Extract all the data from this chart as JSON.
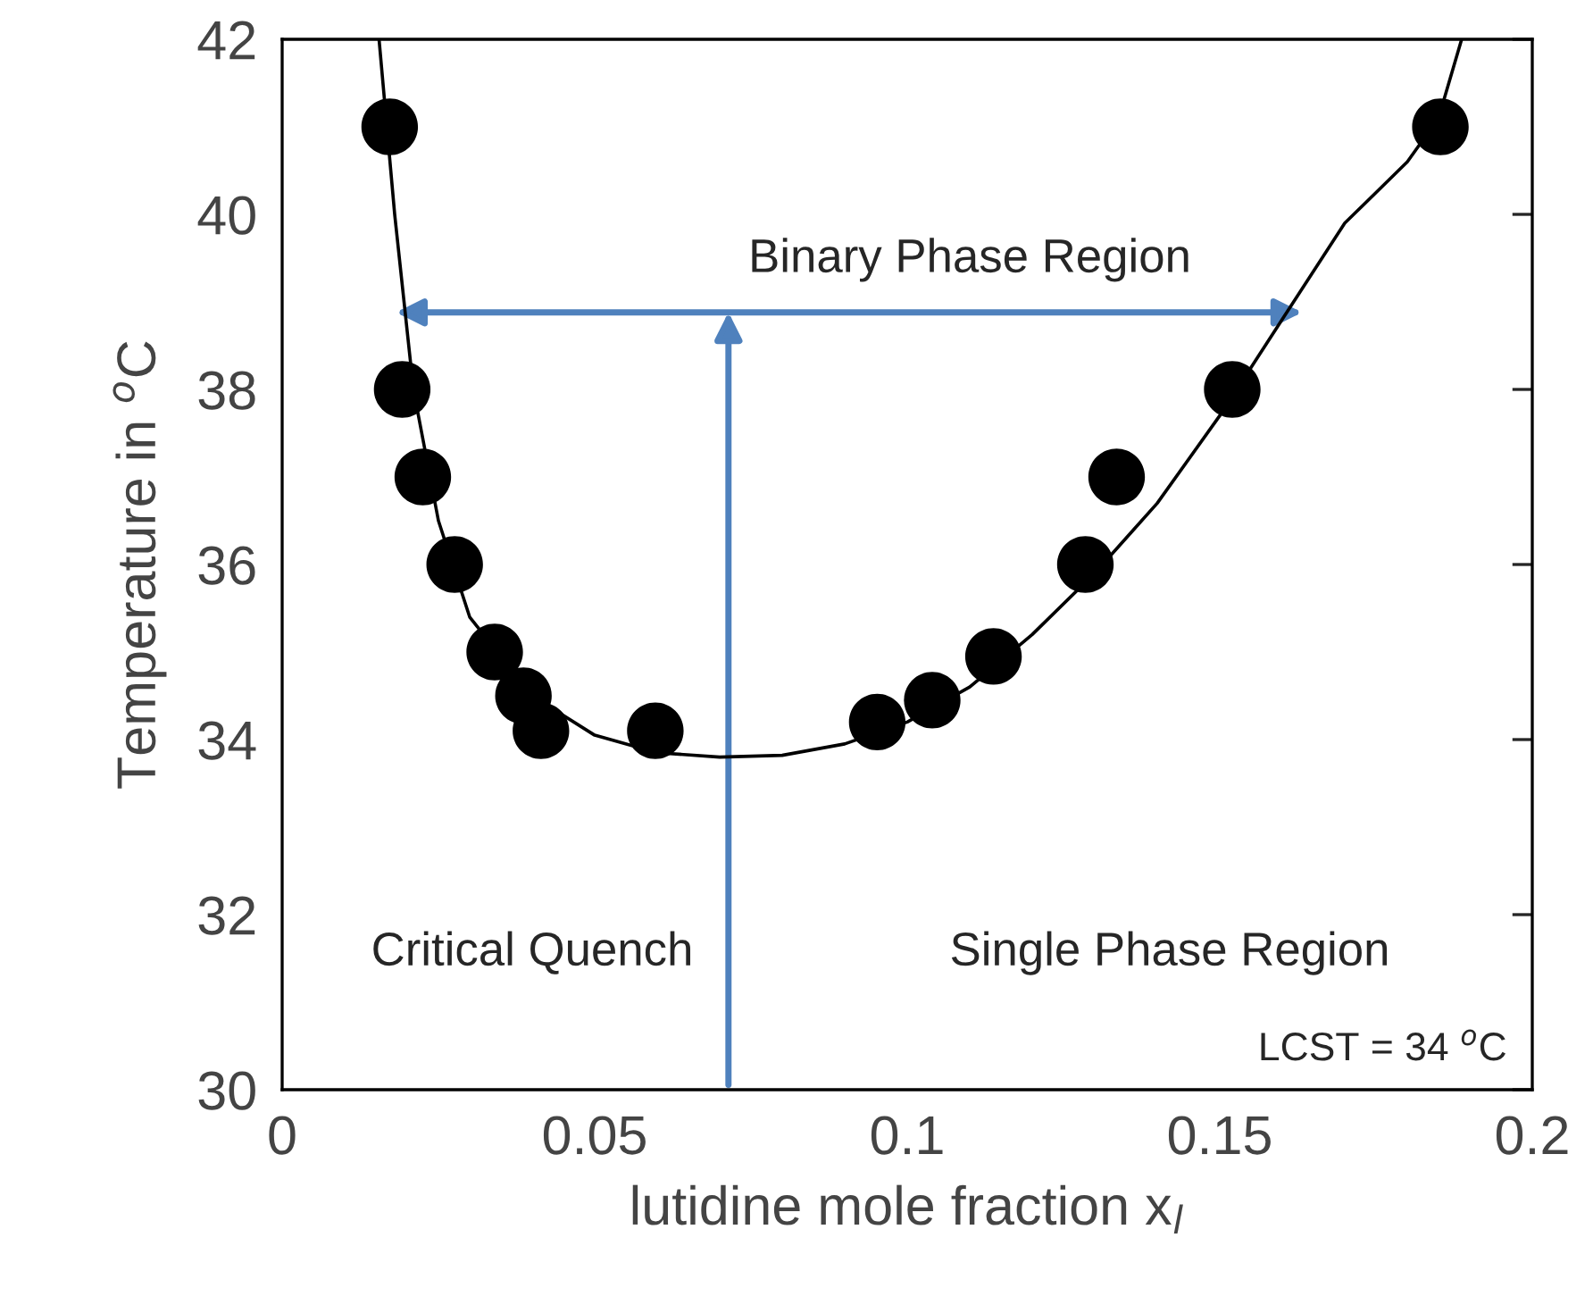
{
  "chart_data": {
    "type": "scatter",
    "xlabel": "lutidine mole fraction x$_{l}$",
    "ylabel": "Temperature in $^{o}$C",
    "xlim": [
      0,
      0.2
    ],
    "ylim": [
      30,
      42
    ],
    "xticks": [
      0,
      0.05,
      0.1,
      0.15,
      0.2
    ],
    "yticks": [
      30,
      32,
      34,
      36,
      38,
      40,
      42
    ],
    "grid": false,
    "marker": "circle",
    "series": [
      {
        "color": "#000000",
        "x": [
          0.0172,
          0.0192,
          0.0225,
          0.0276,
          0.034,
          0.0386,
          0.0414,
          0.0597,
          0.0952,
          0.104,
          0.1138,
          0.1285,
          0.1335,
          0.152,
          0.1853
        ],
        "values": [
          41,
          38,
          37,
          36,
          35,
          34.5,
          34.1,
          34.1,
          34.2,
          34.45,
          34.95,
          36,
          37,
          38,
          41
        ]
      },
      {
        "type": "line",
        "color": "#000000",
        "marker": "none",
        "line_style": "solid",
        "x": [
          0.0155,
          0.018,
          0.021,
          0.025,
          0.03,
          0.04,
          0.05,
          0.06,
          0.07,
          0.08,
          0.09,
          0.1,
          0.11,
          0.12,
          0.13,
          0.14,
          0.15,
          0.16,
          0.17,
          0.18,
          0.185,
          0.1887
        ],
        "values": [
          42,
          40,
          38,
          36.5,
          35.4,
          34.5,
          34.05,
          33.85,
          33.8,
          33.82,
          33.95,
          34.2,
          34.6,
          35.2,
          35.9,
          36.7,
          37.7,
          38.8,
          39.9,
          40.6,
          41.1,
          42
        ]
      }
    ],
    "annotations": [
      "Binary Phase Region",
      "Critical Quench",
      "Single Phase Region",
      "LCST = 34 $^{o}$C"
    ]
  }
}
